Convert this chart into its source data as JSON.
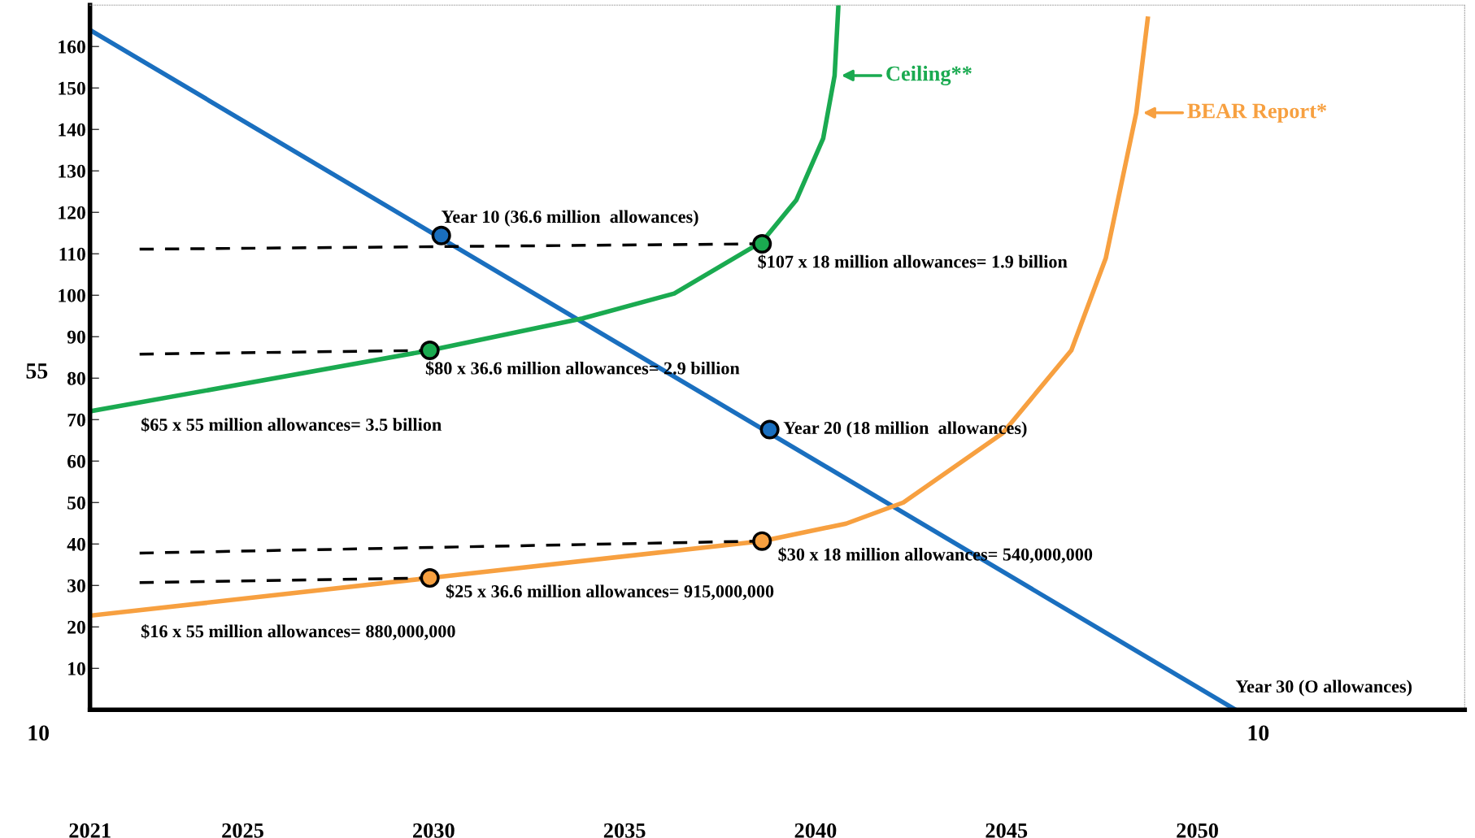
{
  "chart_data": {
    "type": "line",
    "xlim": [
      2021,
      2057
    ],
    "ylim": [
      0,
      170
    ],
    "xticks": [
      2021,
      2025,
      2030,
      2035,
      2040,
      2045,
      2050
    ],
    "yticks": [
      10,
      20,
      30,
      40,
      50,
      60,
      70,
      80,
      90,
      100,
      110,
      120,
      130,
      140,
      150,
      160
    ],
    "grid": false,
    "legend": "top right",
    "series": [
      {
        "color": "#1a6fbf",
        "x": [
          2021,
          2051
        ],
        "values": [
          164,
          0
        ],
        "line_style": "solid"
      },
      {
        "name": "Ceiling**",
        "color": "#1aaa50",
        "x": [
          2021,
          2029.9,
          2033.9,
          2036.3,
          2038.6,
          2039.5,
          2040.2,
          2040.5,
          2040.6
        ],
        "values": [
          72,
          86.7,
          94.4,
          100.4,
          112.9,
          123,
          137.8,
          153,
          170
        ],
        "line_style": "solid"
      },
      {
        "name": "BEAR Report*",
        "color": "#f7a040",
        "x": [
          2021,
          2029.9,
          2038.6,
          2040.8,
          2042.3,
          2044.9,
          2046.7,
          2047.6,
          2048.4,
          2048.7
        ],
        "values": [
          22.7,
          31.8,
          40.7,
          44.9,
          50,
          66.7,
          86.7,
          108.9,
          144,
          166.7
        ],
        "line_style": "solid"
      },
      {
        "type": "line",
        "color": "#000000",
        "x": [
          2022.3,
          2038.6
        ],
        "values": [
          111.1,
          112.4
        ],
        "line_style": "dashed"
      },
      {
        "type": "line",
        "color": "#000000",
        "x": [
          2022.3,
          2029.9
        ],
        "values": [
          85.8,
          86.7
        ],
        "line_style": "dashed"
      },
      {
        "type": "line",
        "color": "#000000",
        "x": [
          2022.3,
          2038.6
        ],
        "values": [
          37.8,
          40.7
        ],
        "line_style": "dashed"
      },
      {
        "type": "line",
        "color": "#000000",
        "x": [
          2022.3,
          2029.9
        ],
        "values": [
          30.7,
          31.8
        ],
        "line_style": "dashed"
      },
      {
        "type": "scatter",
        "color": "#1a6fbf",
        "x": [
          2030.2,
          2038.8
        ],
        "values": [
          114.4,
          67.6
        ],
        "marker": "circle"
      },
      {
        "type": "scatter",
        "color": "#1aaa50",
        "x": [
          2029.9,
          2038.6
        ],
        "values": [
          86.7,
          112.4
        ],
        "marker": "circle"
      },
      {
        "type": "scatter",
        "color": "#f7a040",
        "x": [
          2029.9,
          2038.6
        ],
        "values": [
          31.8,
          40.7
        ],
        "marker": "circle"
      }
    ],
    "annotations": [
      {
        "text": "Year 10 (36.6 million  allowances)",
        "x": 2030.2,
        "y": 114.4
      },
      {
        "text": "$107 x 18 million allowances= 1.9 billion",
        "x": 2038.6,
        "y": 112.4
      },
      {
        "text": "$80 x 36.6 million allowances= 2.9 billion",
        "x": 2029.9,
        "y": 86.7
      },
      {
        "text": "$65 x 55 million allowances= 3.5 billion",
        "x": 2021,
        "y": 72
      },
      {
        "text": "Year 20 (18 million  allowances)",
        "x": 2038.8,
        "y": 67.6
      },
      {
        "text": "$30 x 18 million allowances= 540,000,000",
        "x": 2038.6,
        "y": 40.7
      },
      {
        "text": "$25 x 36.6 million allowances= 915,000,000",
        "x": 2029.9,
        "y": 31.8
      },
      {
        "text": "$16 x 55 million allowances= 880,000,000",
        "x": 2021,
        "y": 22.7
      },
      {
        "text": "Year 30 (O allowances)",
        "x": 2051,
        "y": 0
      },
      "55",
      "10",
      "10"
    ]
  }
}
